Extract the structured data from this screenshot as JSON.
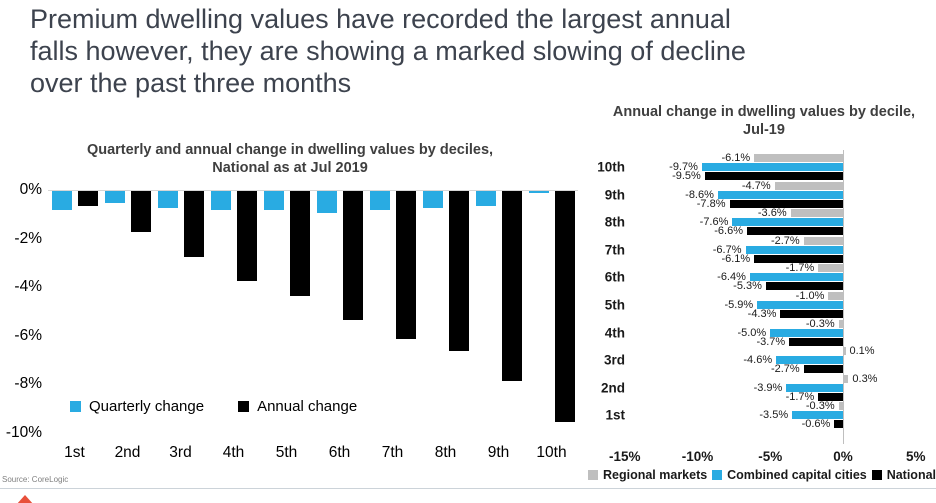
{
  "header": {
    "lines": [
      "Premium dwelling values have recorded the largest annual",
      "falls however, they are showing a marked slowing of decline",
      "over the past three months"
    ]
  },
  "source_note": "Source:  CoreLogic",
  "colors": {
    "cyan": "#29abe2",
    "black": "#000000",
    "gray": "#bfbfbf",
    "title_text": "#3d434e",
    "chart_title_text": "#3f3f3f",
    "accent_red": "#e8503a"
  },
  "chart_data": [
    {
      "type": "bar",
      "title_lines": [
        "Quarterly and annual change in dwelling values by deciles,",
        "National as at Jul 2019"
      ],
      "categories": [
        "1st",
        "2nd",
        "3rd",
        "4th",
        "5th",
        "6th",
        "7th",
        "8th",
        "9th",
        "10th"
      ],
      "series": [
        {
          "name": "Quarterly change",
          "color_key": "cyan",
          "values": [
            -0.8,
            -0.5,
            -0.7,
            -0.8,
            -0.8,
            -0.9,
            -0.8,
            -0.7,
            -0.6,
            -0.1
          ]
        },
        {
          "name": "Annual change",
          "color_key": "black",
          "values": [
            -0.6,
            -1.7,
            -2.7,
            -3.7,
            -4.3,
            -5.3,
            -6.1,
            -6.6,
            -7.8,
            -9.5
          ]
        }
      ],
      "y_ticks": [
        "0%",
        "-2%",
        "-4%",
        "-6%",
        "-8%",
        "-10%"
      ],
      "ylim": [
        0,
        -10
      ],
      "grid": false,
      "legend_position": "below"
    },
    {
      "type": "bar-horizontal",
      "title_lines": [
        "Annual change in dwelling values by decile,",
        "Jul-19"
      ],
      "categories": [
        "10th",
        "9th",
        "8th",
        "7th",
        "6th",
        "5th",
        "4th",
        "3rd",
        "2nd",
        "1st"
      ],
      "series": [
        {
          "name": "Regional markets",
          "color_key": "gray",
          "values": [
            -6.1,
            -4.7,
            -3.6,
            -2.7,
            -1.7,
            -1.0,
            -0.3,
            0.1,
            0.3,
            -0.3
          ]
        },
        {
          "name": "Combined capital cities",
          "color_key": "cyan",
          "values": [
            -9.7,
            -8.6,
            -7.6,
            -6.7,
            -6.4,
            -5.9,
            -5.0,
            -4.6,
            -3.9,
            -3.5
          ]
        },
        {
          "name": "National",
          "color_key": "black",
          "values": [
            -9.5,
            -7.8,
            -6.6,
            -6.1,
            -5.3,
            -4.3,
            -3.7,
            -2.7,
            -1.7,
            -0.6
          ]
        }
      ],
      "x_ticks": [
        "-15%",
        "-10%",
        "-5%",
        "0%",
        "5%"
      ],
      "x_tick_values": [
        -15,
        -10,
        -5,
        0,
        5
      ],
      "xlim": [
        -15,
        5
      ],
      "data_labels": true,
      "grid": false,
      "legend_position": "bottom"
    }
  ]
}
